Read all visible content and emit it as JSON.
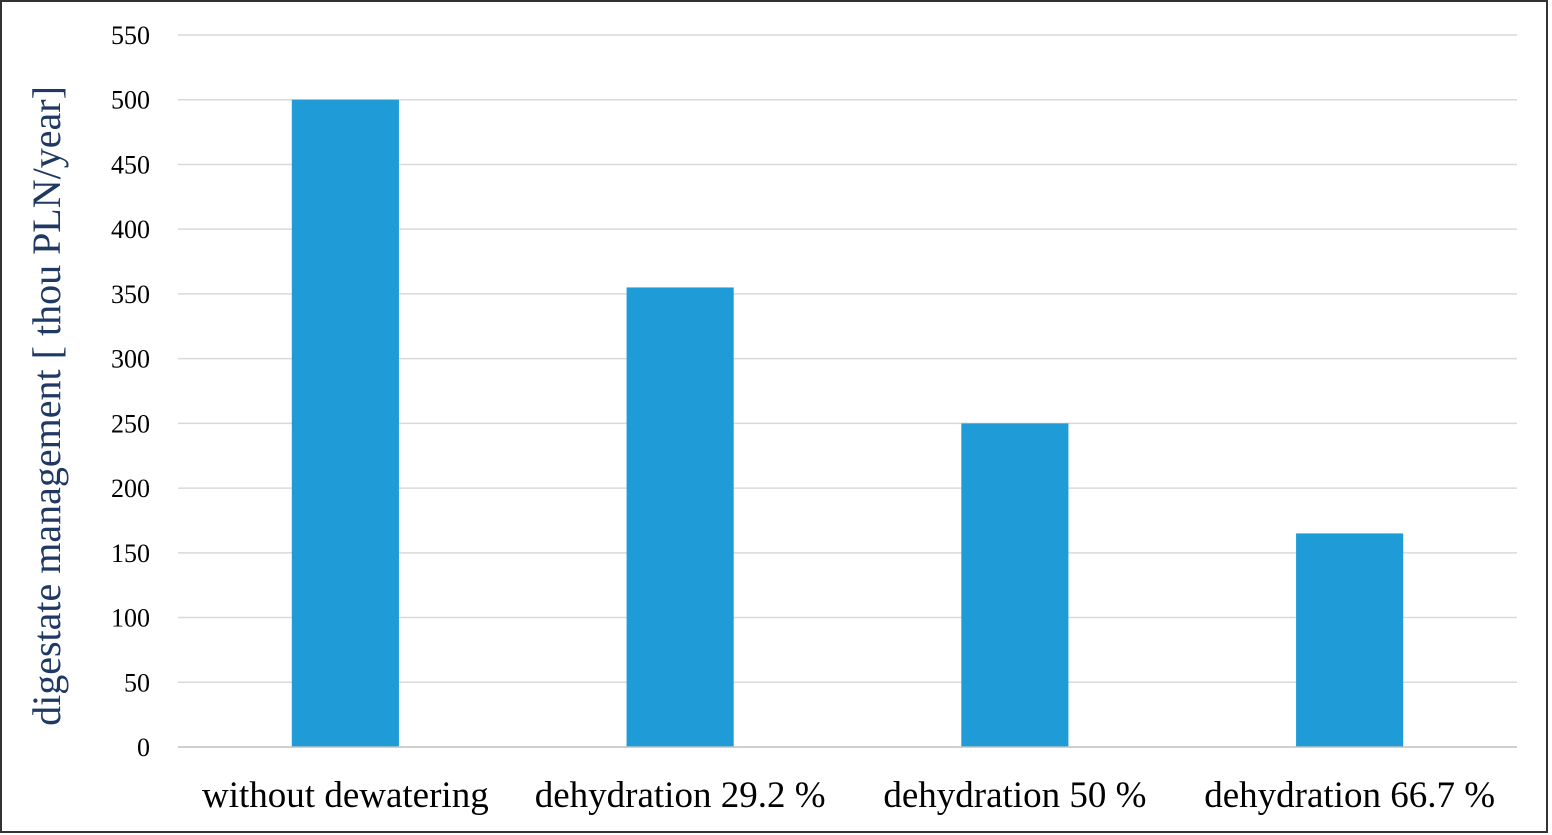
{
  "chart_data": {
    "type": "bar",
    "title": "",
    "xlabel": "",
    "ylabel": "digestate management [ thou PLN/year]",
    "categories": [
      "without dewatering",
      "dehydration 29.2 %",
      "dehydration 50 %",
      "dehydration 66.7 %"
    ],
    "values": [
      500,
      355,
      250,
      165
    ],
    "yticks": [
      "0",
      "50",
      "100",
      "150",
      "200",
      "250",
      "300",
      "350",
      "400",
      "450",
      "500",
      "550"
    ],
    "ylim": [
      0,
      550
    ],
    "ystep": 50,
    "grid": true,
    "legend": "none",
    "bar_color": "#1f9cd8"
  }
}
